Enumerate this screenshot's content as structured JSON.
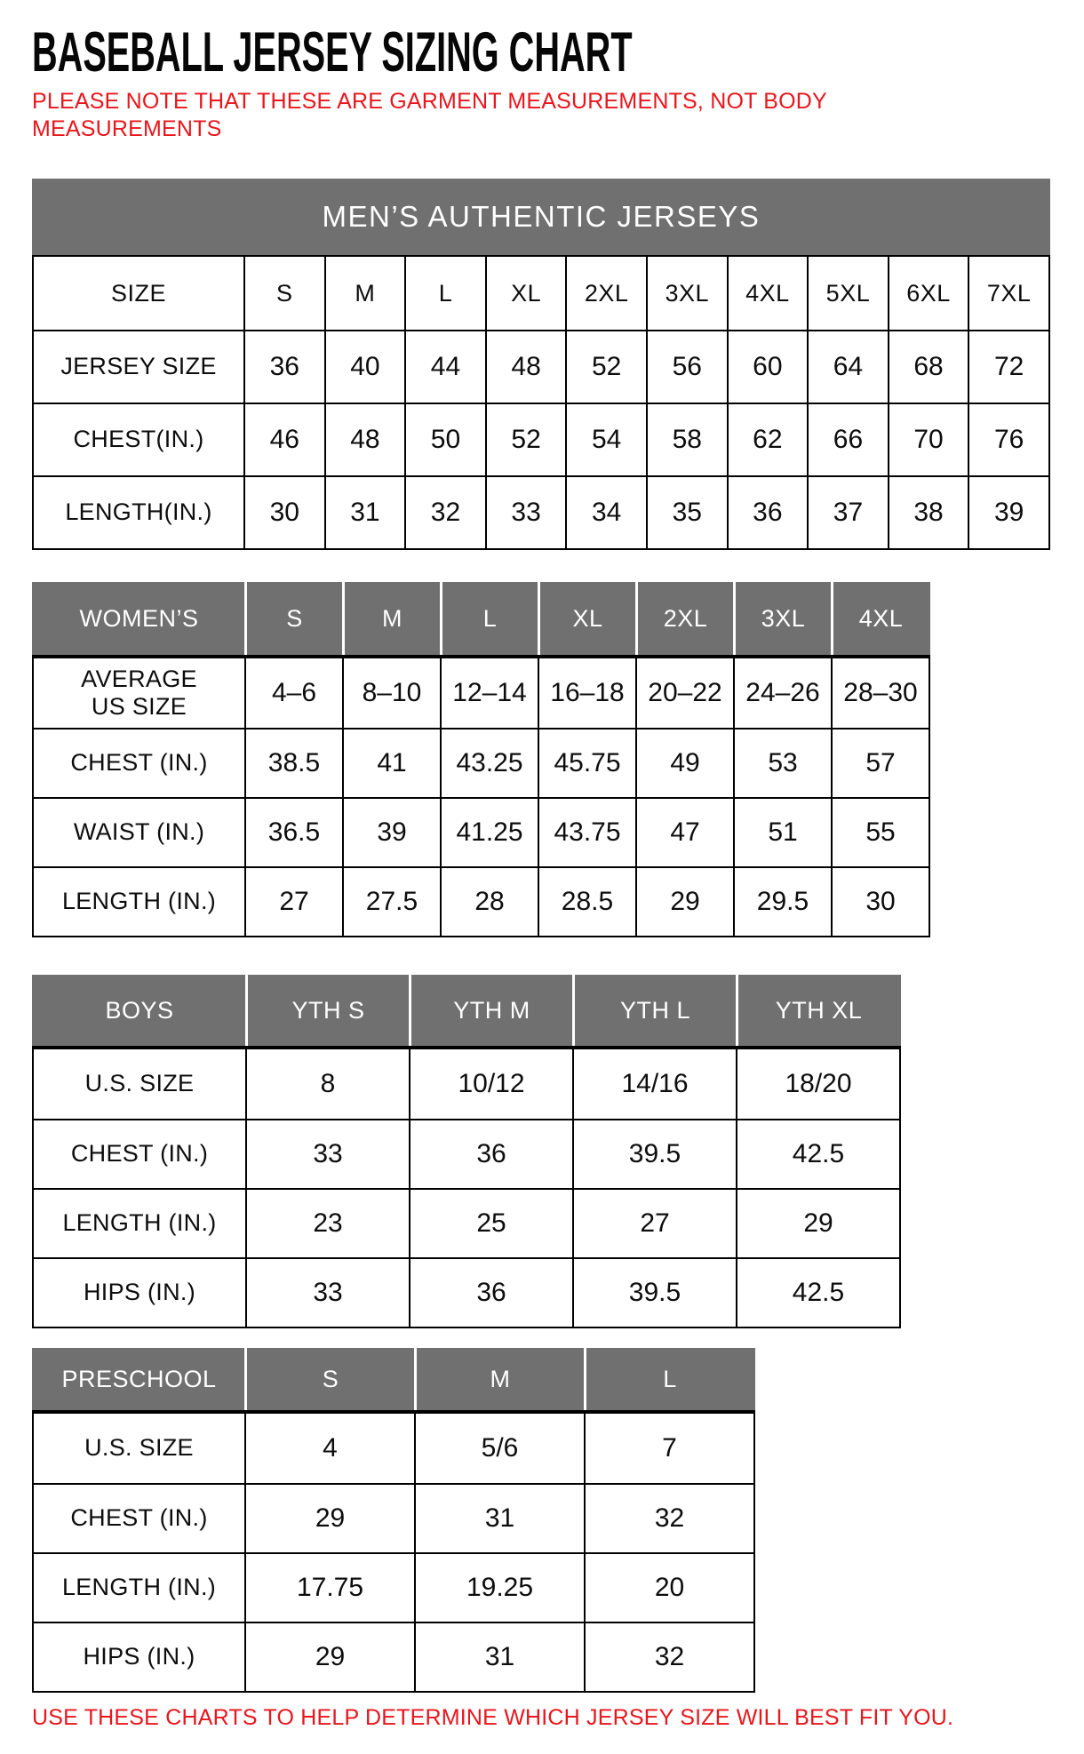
{
  "page": {
    "title": "BASEBALL JERSEY SIZING CHART",
    "note_lines": [
      "PLEASE NOTE THAT THESE ARE GARMENT MEASUREMENTS, NOT BODY",
      "MEASUREMENTS"
    ],
    "footer": "USE THESE CHARTS TO HELP DETERMINE WHICH JERSEY SIZE WILL BEST FIT YOU.",
    "colors": {
      "accent_red": "#e8161d",
      "header_gray": "#707070",
      "border_black": "#000000",
      "header_text": "#ffffff"
    }
  },
  "tables": {
    "mens": {
      "banner": "MEN’S AUTHENTIC JERSEYS",
      "gray_header": false,
      "header": [
        "SIZE",
        "S",
        "M",
        "L",
        "XL",
        "2XL",
        "3XL",
        "4XL",
        "5XL",
        "6XL",
        "7XL"
      ],
      "rows": [
        {
          "label": "JERSEY SIZE",
          "values": [
            "36",
            "40",
            "44",
            "48",
            "52",
            "56",
            "60",
            "64",
            "68",
            "72"
          ]
        },
        {
          "label": "CHEST(IN.)",
          "values": [
            "46",
            "48",
            "50",
            "52",
            "54",
            "58",
            "62",
            "66",
            "70",
            "76"
          ]
        },
        {
          "label": "LENGTH(IN.)",
          "values": [
            "30",
            "31",
            "32",
            "33",
            "34",
            "35",
            "36",
            "37",
            "38",
            "39"
          ]
        }
      ]
    },
    "womens": {
      "gray_header": true,
      "header": [
        "WOMEN’S",
        "S",
        "M",
        "L",
        "XL",
        "2XL",
        "3XL",
        "4XL"
      ],
      "rows": [
        {
          "label": "AVERAGE\nUS SIZE",
          "values": [
            "4–6",
            "8–10",
            "12–14",
            "16–18",
            "20–22",
            "24–26",
            "28–30"
          ]
        },
        {
          "label": "CHEST (IN.)",
          "values": [
            "38.5",
            "41",
            "43.25",
            "45.75",
            "49",
            "53",
            "57"
          ]
        },
        {
          "label": "WAIST (IN.)",
          "values": [
            "36.5",
            "39",
            "41.25",
            "43.75",
            "47",
            "51",
            "55"
          ]
        },
        {
          "label": "LENGTH (IN.)",
          "values": [
            "27",
            "27.5",
            "28",
            "28.5",
            "29",
            "29.5",
            "30"
          ]
        }
      ]
    },
    "boys": {
      "gray_header": true,
      "header": [
        "BOYS",
        "YTH S",
        "YTH M",
        "YTH L",
        "YTH XL"
      ],
      "rows": [
        {
          "label": "U.S. SIZE",
          "values": [
            "8",
            "10/12",
            "14/16",
            "18/20"
          ]
        },
        {
          "label": "CHEST (IN.)",
          "values": [
            "33",
            "36",
            "39.5",
            "42.5"
          ]
        },
        {
          "label": "LENGTH (IN.)",
          "values": [
            "23",
            "25",
            "27",
            "29"
          ]
        },
        {
          "label": "HIPS (IN.)",
          "values": [
            "33",
            "36",
            "39.5",
            "42.5"
          ]
        }
      ]
    },
    "preschool": {
      "gray_header": true,
      "header": [
        "PRESCHOOL",
        "S",
        "M",
        "L"
      ],
      "rows": [
        {
          "label": "U.S. SIZE",
          "values": [
            "4",
            "5/6",
            "7"
          ]
        },
        {
          "label": "CHEST (IN.)",
          "values": [
            "29",
            "31",
            "32"
          ]
        },
        {
          "label": "LENGTH (IN.)",
          "values": [
            "17.75",
            "19.25",
            "20"
          ]
        },
        {
          "label": "HIPS (IN.)",
          "values": [
            "29",
            "31",
            "32"
          ]
        }
      ]
    }
  }
}
